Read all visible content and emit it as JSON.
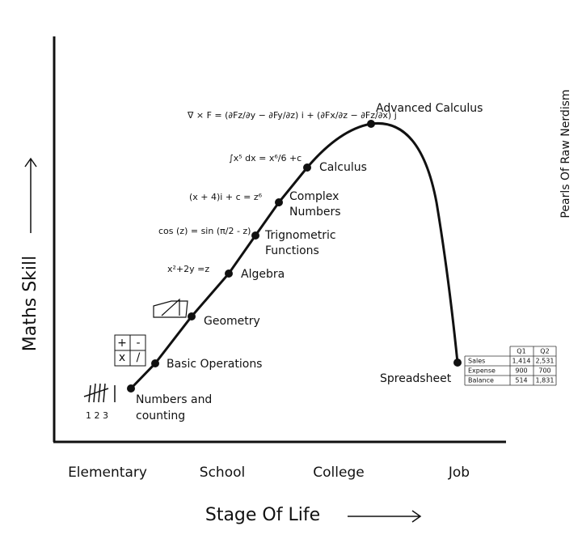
{
  "axes": {
    "y_label": "Maths Skill",
    "x_label": "Stage Of Life"
  },
  "stages": [
    "Elementary",
    "School",
    "College",
    "Job"
  ],
  "nodes": [
    {
      "lines": [
        "Numbers and",
        "counting"
      ]
    },
    {
      "lines": [
        "Basic Operations"
      ]
    },
    {
      "lines": [
        "Geometry"
      ]
    },
    {
      "lines": [
        "Algebra"
      ]
    },
    {
      "lines": [
        "Trignometric",
        "Functions"
      ]
    },
    {
      "lines": [
        "Complex",
        "Numbers"
      ]
    },
    {
      "lines": [
        "Calculus"
      ]
    },
    {
      "lines": [
        "Advanced Calculus"
      ]
    },
    {
      "lines": [
        "Spreadsheet"
      ]
    }
  ],
  "icons": {
    "tally": "1 2 3",
    "operations": [
      "+",
      "-",
      "x",
      "/"
    ]
  },
  "formulas": [
    "x²+2y =z",
    "cos (z) = sin (π/2 - z)",
    "(x + 4)i + c = z⁶",
    "∫x⁵ dx = x⁶/6 +c",
    "∇ × F = (∂Fz/∂y − ∂Fy/∂z) i + (∂Fx/∂z − ∂Fz/∂x) j"
  ],
  "table": {
    "header": [
      "Q1",
      "Q2"
    ],
    "rows": [
      [
        "Sales",
        "1,414",
        "2,531"
      ],
      [
        "Expense",
        "900",
        "700"
      ],
      [
        "Balance",
        "514",
        "1,831"
      ]
    ]
  },
  "credit": "Pearls Of Raw Nerdism"
}
